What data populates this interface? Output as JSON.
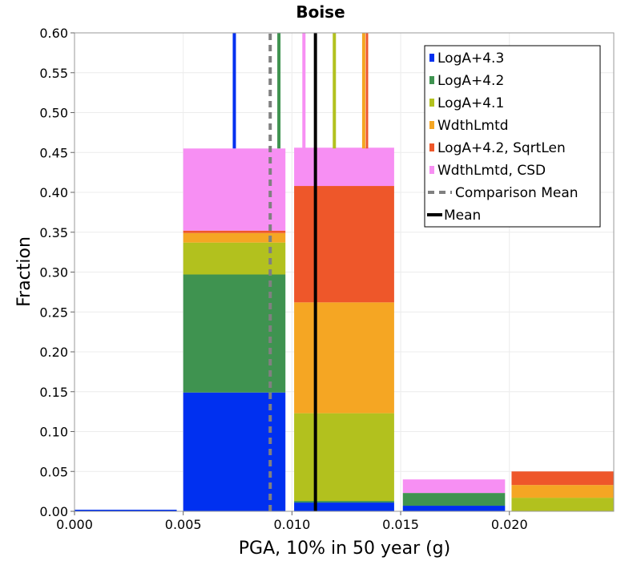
{
  "chart_data": {
    "type": "bar",
    "stacked": true,
    "title": "Boise",
    "xlabel": "PGA, 10% in 50 year (g)",
    "ylabel": "Fraction",
    "xlim": [
      0.0,
      0.0248
    ],
    "ylim": [
      0.0,
      0.6
    ],
    "grid": true,
    "legend_position": "top-right",
    "x_ticks": [
      {
        "value": 0.0,
        "label": "0.000"
      },
      {
        "value": 0.005,
        "label": "0.005"
      },
      {
        "value": 0.01,
        "label": "0.010"
      },
      {
        "value": 0.015,
        "label": "0.015"
      },
      {
        "value": 0.02,
        "label": "0.020"
      }
    ],
    "y_ticks": [
      {
        "value": 0.0,
        "label": "0.00"
      },
      {
        "value": 0.05,
        "label": "0.05"
      },
      {
        "value": 0.1,
        "label": "0.10"
      },
      {
        "value": 0.15,
        "label": "0.15"
      },
      {
        "value": 0.2,
        "label": "0.20"
      },
      {
        "value": 0.25,
        "label": "0.25"
      },
      {
        "value": 0.3,
        "label": "0.30"
      },
      {
        "value": 0.35,
        "label": "0.35"
      },
      {
        "value": 0.4,
        "label": "0.40"
      },
      {
        "value": 0.45,
        "label": "0.45"
      },
      {
        "value": 0.5,
        "label": "0.50"
      },
      {
        "value": 0.55,
        "label": "0.55"
      },
      {
        "value": 0.6,
        "label": "0.60"
      }
    ],
    "bins": [
      {
        "x0": 0.0,
        "x1": 0.0047
      },
      {
        "x0": 0.005,
        "x1": 0.0097
      },
      {
        "x0": 0.0101,
        "x1": 0.0147
      },
      {
        "x0": 0.0151,
        "x1": 0.0198
      },
      {
        "x0": 0.0201,
        "x1": 0.0248
      }
    ],
    "series": [
      {
        "name": "LogA+4.3",
        "color": "#0030f0",
        "values": [
          0.002,
          0.149,
          0.011,
          0.007,
          0.0
        ]
      },
      {
        "name": "LogA+4.2",
        "color": "#3f9350",
        "values": [
          0.0,
          0.148,
          0.002,
          0.016,
          0.0
        ]
      },
      {
        "name": "LogA+4.1",
        "color": "#b2c11e",
        "values": [
          0.0,
          0.04,
          0.11,
          0.0,
          0.017
        ]
      },
      {
        "name": "WdthLmtd",
        "color": "#f5a623",
        "values": [
          0.0,
          0.012,
          0.139,
          0.0,
          0.016
        ]
      },
      {
        "name": "LogA+4.2, SqrtLen",
        "color": "#ee572a",
        "values": [
          0.0,
          0.003,
          0.146,
          0.0,
          0.017
        ]
      },
      {
        "name": "WdthLmtd, CSD",
        "color": "#f78ff3",
        "values": [
          0.0,
          0.103,
          0.048,
          0.017,
          0.0
        ]
      }
    ],
    "mean_lines": [
      {
        "name": "LogA+4.3",
        "color": "#0030f0",
        "x": 0.00735,
        "y_from": 0.455,
        "dashed": false,
        "width": 4
      },
      {
        "name": "LogA+4.2",
        "color": "#3f9350",
        "x": 0.0094,
        "y_from": 0.455,
        "dashed": false,
        "width": 4
      },
      {
        "name": "WdthLmtd, CSD",
        "color": "#f78ff3",
        "x": 0.01055,
        "y_from": 0.455,
        "dashed": false,
        "width": 4
      },
      {
        "name": "LogA+4.1",
        "color": "#b2c11e",
        "x": 0.01195,
        "y_from": 0.455,
        "dashed": false,
        "width": 4
      },
      {
        "name": "WdthLmtd",
        "color": "#f5a623",
        "x": 0.0133,
        "y_from": 0.455,
        "dashed": false,
        "width": 4
      },
      {
        "name": "LogA+4.2, SqrtLen",
        "color": "#ee572a",
        "x": 0.01345,
        "y_from": 0.455,
        "dashed": false,
        "width": 3
      },
      {
        "name": "Comparison Mean",
        "color": "#808080",
        "x": 0.009,
        "y_from": 0.0,
        "dashed": true,
        "width": 4
      },
      {
        "name": "Mean",
        "color": "#000000",
        "x": 0.01108,
        "y_from": 0.0,
        "dashed": false,
        "width": 4
      }
    ],
    "legend": [
      {
        "label": "LogA+4.3",
        "color": "#0030f0",
        "kind": "box"
      },
      {
        "label": "LogA+4.2",
        "color": "#3f9350",
        "kind": "box"
      },
      {
        "label": "LogA+4.1",
        "color": "#b2c11e",
        "kind": "box"
      },
      {
        "label": "WdthLmtd",
        "color": "#f5a623",
        "kind": "box"
      },
      {
        "label": "LogA+4.2, SqrtLen",
        "color": "#ee572a",
        "kind": "box"
      },
      {
        "label": "WdthLmtd, CSD",
        "color": "#f78ff3",
        "kind": "box"
      },
      {
        "label": "Comparison Mean",
        "color": "#808080",
        "kind": "dash"
      },
      {
        "label": "Mean",
        "color": "#000000",
        "kind": "line"
      }
    ]
  }
}
